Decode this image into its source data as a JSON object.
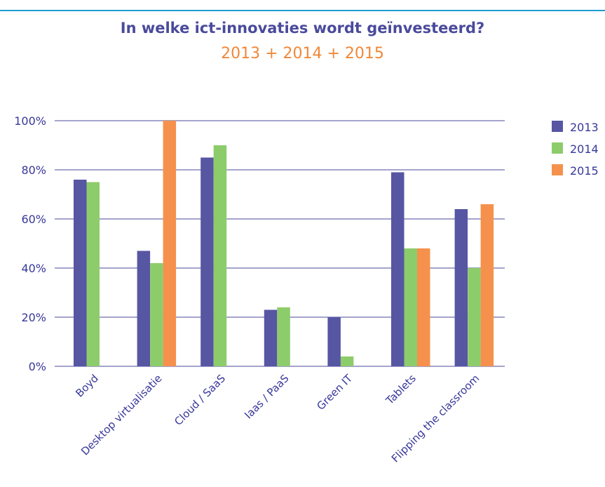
{
  "chart_data": {
    "type": "bar",
    "title": "In welke ict-innovaties wordt geïnvesteerd?",
    "subtitle": "2013 + 2014 + 2015",
    "categories": [
      "Boyd",
      "Desktop virtualisatie",
      "Cloud / SaaS",
      "Iaas / PaaS",
      "Green IT",
      "Tablets",
      "Flipping the classroom"
    ],
    "series": [
      {
        "name": "2013",
        "color": "#5656a3",
        "values": [
          76,
          47,
          85,
          23,
          20,
          79,
          64
        ]
      },
      {
        "name": "2014",
        "color": "#8dcc6b",
        "values": [
          75,
          42,
          90,
          24,
          4,
          48,
          40
        ]
      },
      {
        "name": "2015",
        "color": "#f5914c",
        "values": [
          null,
          100,
          null,
          null,
          null,
          48,
          66
        ]
      }
    ],
    "ylim": [
      0,
      100
    ],
    "yticks": [
      "0%",
      "20%",
      "40%",
      "60%",
      "80%",
      "100%"
    ],
    "grid": true,
    "legend": "right",
    "colors": {
      "title": "#4a4a9c",
      "subtitle": "#f0883a",
      "axis_text": "#38389a",
      "gridline": "#4a4a9c",
      "top_rule": "#1f9bd0"
    }
  }
}
